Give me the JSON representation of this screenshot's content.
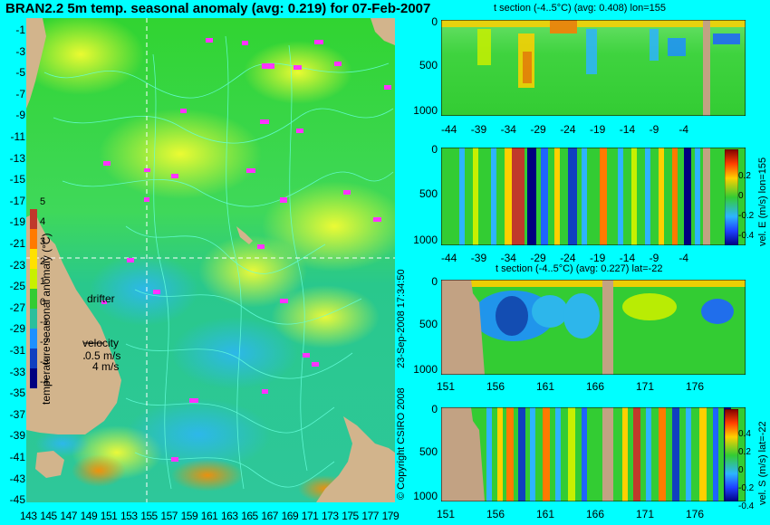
{
  "chart_data": [
    {
      "type": "heatmap",
      "title": "BRAN2.2 5m temp. seasonal anomaly (avg: 0.219) for 07-Feb-2007",
      "x_ticks": [
        "143",
        "145",
        "147",
        "149",
        "151",
        "153",
        "155",
        "157",
        "159",
        "161",
        "163",
        "165",
        "167",
        "169",
        "171",
        "173",
        "175",
        "177",
        "179"
      ],
      "y_ticks": [
        "-1",
        "-3",
        "-5",
        "-7",
        "-9",
        "-11",
        "-13",
        "-15",
        "-17",
        "-19",
        "-21",
        "-23",
        "-25",
        "-27",
        "-29",
        "-31",
        "-33",
        "-35",
        "-37",
        "-39",
        "-41",
        "-43",
        "-45"
      ],
      "xlim": [
        143,
        180
      ],
      "ylim": [
        -45,
        0
      ],
      "colorbar": {
        "label": "temperature seasonal anomaly (°C)",
        "ticks": [
          "5",
          "4",
          "3",
          "2",
          "1",
          "0",
          "-1",
          "-2",
          "-3",
          "-4"
        ],
        "range": [
          -4,
          5
        ]
      },
      "guide_lon": 155,
      "guide_lat": -22,
      "annotations": [
        "drifter",
        "velocity",
        "0.5 m/s",
        "4 m/s"
      ]
    },
    {
      "type": "heatmap",
      "title": "t section (-4..5°C) (avg: 0.408) lon=155",
      "x_ticks": [
        "-44",
        "-39",
        "-34",
        "-29",
        "-24",
        "-19",
        "-14",
        "-9",
        "-4"
      ],
      "y_ticks": [
        "0",
        "500",
        "1000"
      ],
      "xlim": [
        -45,
        0
      ],
      "ylim": [
        1050,
        0
      ]
    },
    {
      "type": "heatmap",
      "title": "",
      "x_ticks": [
        "-44",
        "-39",
        "-34",
        "-29",
        "-24",
        "-19",
        "-14",
        "-9",
        "-4"
      ],
      "y_ticks": [
        "0",
        "500",
        "1000"
      ],
      "colorbar": {
        "label": "vel. E (m/s) lon=155",
        "ticks": [
          "0.2",
          "0",
          "-0.2",
          "-0.4"
        ],
        "range": [
          -0.45,
          0.45
        ]
      }
    },
    {
      "type": "heatmap",
      "title": "t section (-4..5°C) (avg: 0.227) lat=-22",
      "x_ticks": [
        "151",
        "156",
        "161",
        "166",
        "171",
        "176"
      ],
      "y_ticks": [
        "0",
        "500",
        "1000"
      ]
    },
    {
      "type": "heatmap",
      "title": "",
      "x_ticks": [
        "151",
        "156",
        "161",
        "166",
        "171",
        "176"
      ],
      "y_ticks": [
        "0",
        "500",
        "1000"
      ],
      "colorbar": {
        "label": "vel. S (m/s) lat=-22",
        "ticks": [
          "0.4",
          "0.2",
          "0",
          "-0.2",
          "-0.4"
        ],
        "range": [
          -0.45,
          0.45
        ]
      }
    }
  ],
  "credit": "© Copyright CSIRO 2008",
  "timestamp": "23-Sep-2008 17:34:50"
}
